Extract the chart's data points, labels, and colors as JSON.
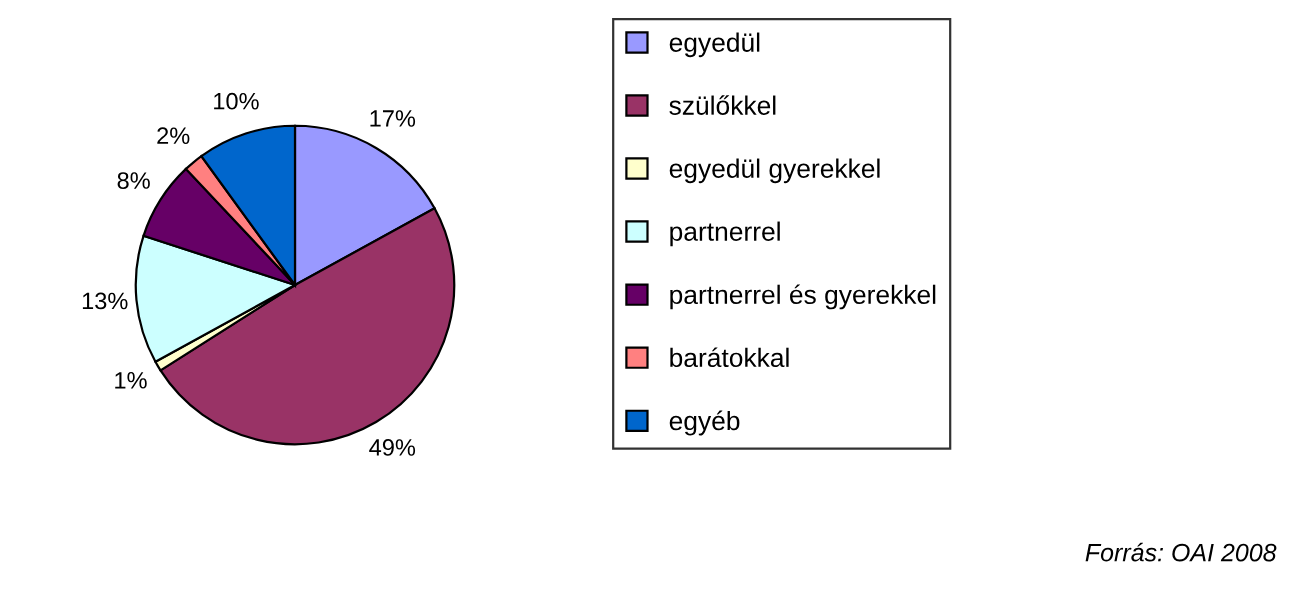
{
  "chart_data": {
    "type": "pie",
    "categories": [
      "egyedül",
      "szülőkkel",
      "egyedül gyerekkel",
      "partnerrel",
      "partnerrel és gyerekkel",
      "barátokkal",
      "egyéb"
    ],
    "values": [
      17,
      49,
      1,
      13,
      8,
      2,
      10
    ],
    "colors": [
      "#9999ff",
      "#993366",
      "#ffffcc",
      "#ccffff",
      "#660066",
      "#ff8080",
      "#0066cc"
    ],
    "value_labels": [
      "17%",
      "49%",
      "1%",
      "13%",
      "8%",
      "2%",
      "10%"
    ],
    "legend": "right",
    "annotations": [
      "Forrás: OAI 2008"
    ]
  }
}
